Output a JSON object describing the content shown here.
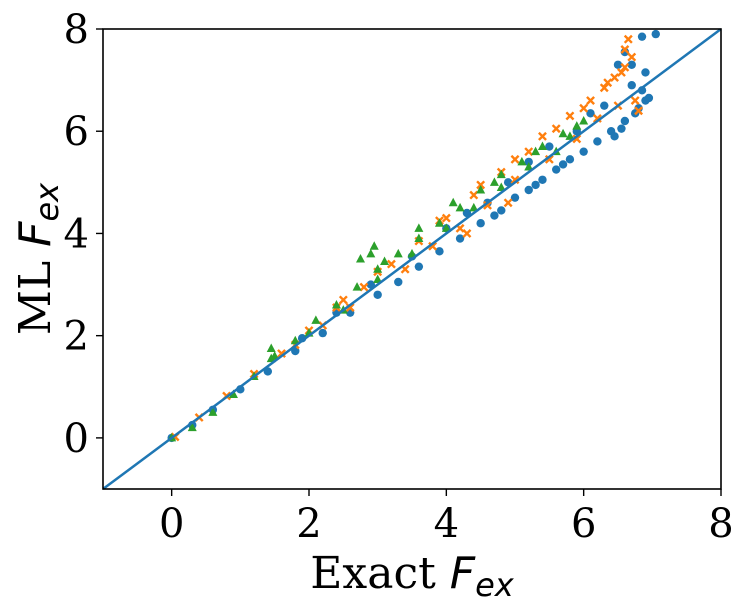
{
  "chart_data": {
    "type": "scatter",
    "xlabel": {
      "prefix": "Exact ",
      "symbol": "F",
      "subscript": "ex"
    },
    "ylabel": {
      "prefix": "ML ",
      "symbol": "F",
      "subscript": "ex"
    },
    "xlim": [
      -1,
      8
    ],
    "ylim": [
      -1,
      8
    ],
    "xticks": [
      "0",
      "2",
      "4",
      "6",
      "8"
    ],
    "yticks": [
      "0",
      "2",
      "4",
      "6",
      "8"
    ],
    "grid": false,
    "reference_line": {
      "type": "identity",
      "color": "#1f77b4"
    },
    "series": [
      {
        "marker": "circle",
        "color": "#1f77b4",
        "points": [
          [
            0.0,
            0.0
          ],
          [
            0.3,
            0.25
          ],
          [
            0.6,
            0.55
          ],
          [
            1.0,
            0.95
          ],
          [
            1.4,
            1.3
          ],
          [
            1.8,
            1.7
          ],
          [
            2.2,
            2.05
          ],
          [
            2.6,
            2.45
          ],
          [
            3.0,
            2.8
          ],
          [
            3.3,
            3.05
          ],
          [
            3.6,
            3.35
          ],
          [
            3.9,
            3.65
          ],
          [
            4.2,
            3.9
          ],
          [
            4.5,
            4.2
          ],
          [
            4.8,
            4.45
          ],
          [
            5.0,
            4.7
          ],
          [
            5.2,
            4.85
          ],
          [
            5.4,
            5.05
          ],
          [
            5.6,
            5.25
          ],
          [
            5.8,
            5.45
          ],
          [
            6.0,
            5.6
          ],
          [
            6.2,
            5.8
          ],
          [
            6.4,
            6.0
          ],
          [
            6.6,
            6.2
          ],
          [
            6.8,
            6.45
          ],
          [
            6.9,
            6.6
          ],
          [
            6.5,
            7.3
          ],
          [
            6.6,
            7.55
          ],
          [
            6.7,
            7.3
          ],
          [
            6.85,
            7.85
          ],
          [
            7.05,
            7.9
          ],
          [
            6.9,
            7.15
          ],
          [
            6.3,
            6.5
          ],
          [
            5.9,
            6.0
          ],
          [
            5.5,
            5.7
          ],
          [
            5.2,
            5.4
          ],
          [
            4.9,
            5.0
          ],
          [
            4.6,
            4.6
          ],
          [
            4.3,
            4.4
          ],
          [
            4.0,
            4.1
          ],
          [
            3.5,
            3.55
          ],
          [
            2.9,
            3.0
          ],
          [
            2.4,
            2.45
          ],
          [
            1.9,
            1.95
          ],
          [
            6.1,
            6.35
          ],
          [
            6.7,
            6.9
          ],
          [
            6.45,
            5.9
          ],
          [
            5.7,
            5.35
          ],
          [
            5.3,
            4.95
          ],
          [
            4.7,
            4.35
          ],
          [
            6.95,
            6.65
          ],
          [
            6.75,
            6.35
          ],
          [
            6.55,
            6.05
          ],
          [
            6.85,
            6.8
          ]
        ]
      },
      {
        "marker": "x",
        "color": "#ff7f0e",
        "points": [
          [
            0.05,
            0.02
          ],
          [
            0.4,
            0.4
          ],
          [
            0.8,
            0.82
          ],
          [
            1.2,
            1.25
          ],
          [
            1.6,
            1.65
          ],
          [
            2.0,
            2.1
          ],
          [
            2.4,
            2.55
          ],
          [
            2.8,
            2.95
          ],
          [
            3.2,
            3.4
          ],
          [
            3.6,
            3.85
          ],
          [
            4.0,
            4.3
          ],
          [
            4.4,
            4.75
          ],
          [
            4.8,
            5.2
          ],
          [
            5.2,
            5.6
          ],
          [
            5.6,
            6.05
          ],
          [
            6.0,
            6.45
          ],
          [
            6.3,
            6.85
          ],
          [
            6.6,
            7.25
          ],
          [
            6.65,
            7.8
          ],
          [
            6.6,
            7.6
          ],
          [
            6.7,
            7.45
          ],
          [
            6.45,
            7.05
          ],
          [
            6.5,
            6.5
          ],
          [
            6.2,
            6.25
          ],
          [
            5.9,
            5.85
          ],
          [
            5.5,
            5.45
          ],
          [
            5.0,
            5.05
          ],
          [
            4.6,
            4.55
          ],
          [
            4.2,
            4.1
          ],
          [
            3.8,
            3.75
          ],
          [
            3.4,
            3.3
          ],
          [
            2.6,
            2.55
          ],
          [
            2.2,
            2.2
          ],
          [
            1.8,
            1.82
          ],
          [
            5.4,
            5.9
          ],
          [
            5.0,
            5.45
          ],
          [
            4.5,
            4.95
          ],
          [
            3.9,
            4.25
          ],
          [
            3.0,
            3.25
          ],
          [
            2.5,
            2.7
          ],
          [
            6.55,
            7.15
          ],
          [
            6.35,
            6.95
          ],
          [
            6.1,
            6.6
          ],
          [
            5.8,
            6.3
          ],
          [
            6.8,
            6.4
          ],
          [
            6.75,
            6.6
          ],
          [
            4.3,
            4.0
          ],
          [
            4.9,
            4.6
          ]
        ]
      },
      {
        "marker": "triangle",
        "color": "#2ca02c",
        "points": [
          [
            0.0,
            0.0
          ],
          [
            0.3,
            0.2
          ],
          [
            0.6,
            0.5
          ],
          [
            0.9,
            0.85
          ],
          [
            1.2,
            1.2
          ],
          [
            1.5,
            1.6
          ],
          [
            1.8,
            1.9
          ],
          [
            2.1,
            2.3
          ],
          [
            2.4,
            2.6
          ],
          [
            2.7,
            2.95
          ],
          [
            3.0,
            3.3
          ],
          [
            3.3,
            3.6
          ],
          [
            3.6,
            3.9
          ],
          [
            3.9,
            4.2
          ],
          [
            4.2,
            4.5
          ],
          [
            4.5,
            4.85
          ],
          [
            4.8,
            5.15
          ],
          [
            5.1,
            5.4
          ],
          [
            5.4,
            5.7
          ],
          [
            5.7,
            5.95
          ],
          [
            5.9,
            6.1
          ],
          [
            6.0,
            6.2
          ],
          [
            5.6,
            5.6
          ],
          [
            5.2,
            5.3
          ],
          [
            4.8,
            4.9
          ],
          [
            4.4,
            4.5
          ],
          [
            4.0,
            4.1
          ],
          [
            3.5,
            3.6
          ],
          [
            3.0,
            3.1
          ],
          [
            2.5,
            2.5
          ],
          [
            2.0,
            2.05
          ],
          [
            1.45,
            1.55
          ],
          [
            2.95,
            3.75
          ],
          [
            2.75,
            3.5
          ],
          [
            2.9,
            3.6
          ],
          [
            1.45,
            1.75
          ],
          [
            3.1,
            3.45
          ],
          [
            3.6,
            4.1
          ],
          [
            4.1,
            4.6
          ],
          [
            4.7,
            5.0
          ],
          [
            5.3,
            5.6
          ],
          [
            5.8,
            5.9
          ]
        ]
      }
    ]
  }
}
